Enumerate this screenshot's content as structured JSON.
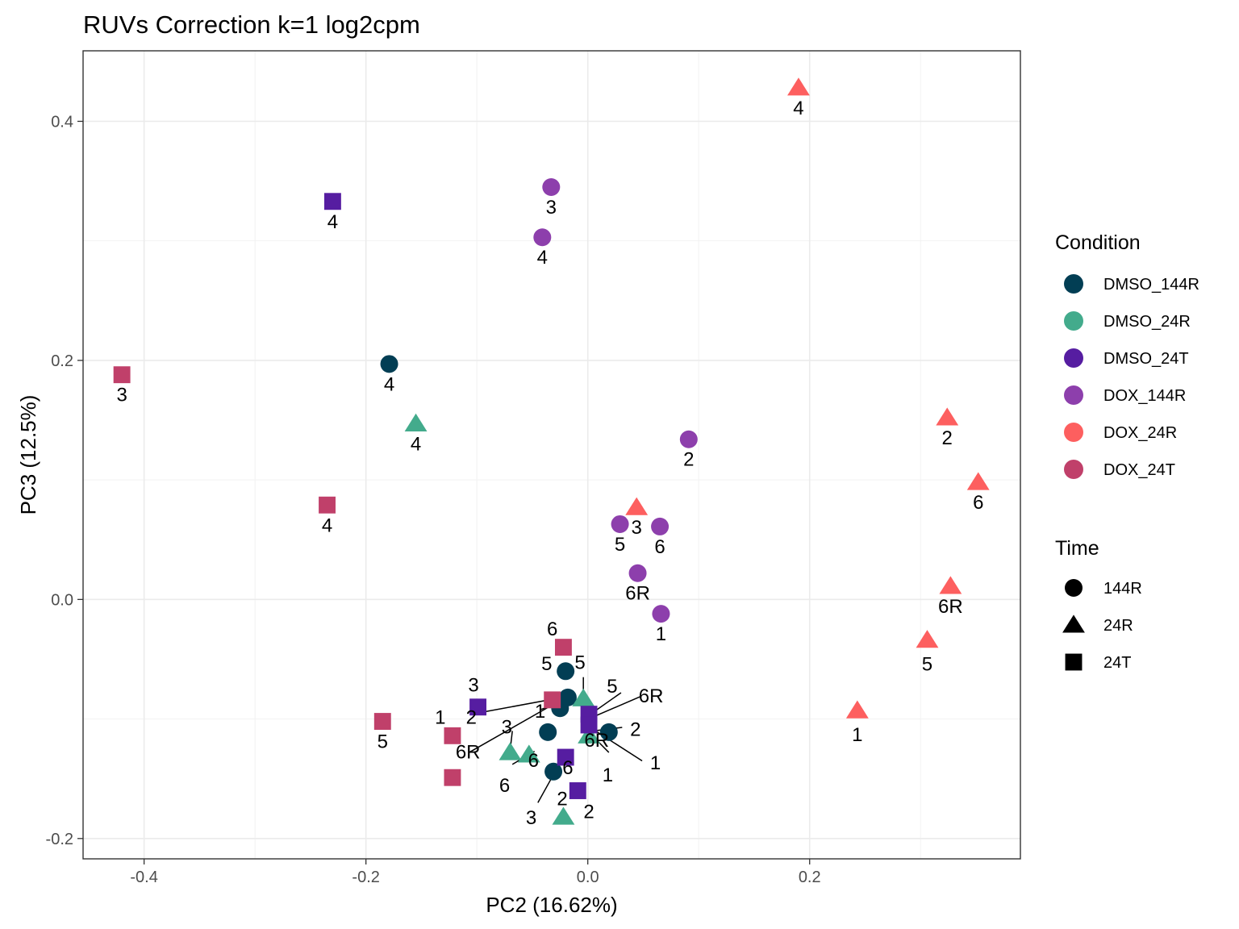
{
  "chart_data": {
    "type": "scatter",
    "title": "RUVs Correction k=1 log2cpm",
    "xlabel": "PC2 (16.62%)",
    "ylabel": "PC3 (12.5%)",
    "xlim": [
      -0.455,
      0.39
    ],
    "ylim": [
      -0.217,
      0.459
    ],
    "x_ticks": [
      -0.4,
      -0.2,
      0.0,
      0.2
    ],
    "x_tick_labels": [
      "-0.4",
      "-0.2",
      "0.0",
      "0.2"
    ],
    "y_ticks": [
      -0.2,
      0.0,
      0.2,
      0.4
    ],
    "y_tick_labels": [
      "-0.2",
      "0.0",
      "0.2",
      "0.4"
    ],
    "grid": true,
    "legend": {
      "placement": "right",
      "condition_title": "Condition",
      "conditions": [
        {
          "name": "DMSO_144R",
          "color": "#023e54"
        },
        {
          "name": "DMSO_24R",
          "color": "#43ab8c"
        },
        {
          "name": "DMSO_24T",
          "color": "#561da1"
        },
        {
          "name": "DOX_144R",
          "color": "#8d3fac"
        },
        {
          "name": "DOX_24R",
          "color": "#fd5f5f"
        },
        {
          "name": "DOX_24T",
          "color": "#c0406a"
        }
      ],
      "time_title": "Time",
      "times": [
        {
          "name": "144R",
          "shape": "circle"
        },
        {
          "name": "24R",
          "shape": "triangle"
        },
        {
          "name": "24T",
          "shape": "square"
        }
      ]
    },
    "points": [
      {
        "condition": "DMSO_144R",
        "time": "144R",
        "label": "4",
        "x": -0.179,
        "y": 0.197
      },
      {
        "condition": "DMSO_144R",
        "time": "144R",
        "label": "5",
        "x": -0.02,
        "y": -0.06
      },
      {
        "condition": "DMSO_144R",
        "time": "144R",
        "label": "1",
        "x": -0.025,
        "y": -0.091
      },
      {
        "condition": "DMSO_144R",
        "time": "144R",
        "label": "6R",
        "x": -0.018,
        "y": -0.082
      },
      {
        "condition": "DMSO_144R",
        "time": "144R",
        "label": "3",
        "x": -0.036,
        "y": -0.111
      },
      {
        "condition": "DMSO_144R",
        "time": "144R",
        "label": "2",
        "x": 0.019,
        "y": -0.111
      },
      {
        "condition": "DMSO_144R",
        "time": "144R",
        "label": "6",
        "x": -0.031,
        "y": -0.144
      },
      {
        "condition": "DMSO_24R",
        "time": "24R",
        "label": "4",
        "x": -0.155,
        "y": 0.147
      },
      {
        "condition": "DMSO_24R",
        "time": "24R",
        "label": "5",
        "x": -0.004,
        "y": -0.083
      },
      {
        "condition": "DMSO_24R",
        "time": "24R",
        "label": "1",
        "x": 0.001,
        "y": -0.114
      },
      {
        "condition": "DMSO_24R",
        "time": "24R",
        "label": "3",
        "x": -0.07,
        "y": -0.128
      },
      {
        "condition": "DMSO_24R",
        "time": "24R",
        "label": "6",
        "x": -0.053,
        "y": -0.13
      },
      {
        "condition": "DMSO_24R",
        "time": "24R",
        "label": "2",
        "x": -0.022,
        "y": -0.182
      },
      {
        "condition": "DMSO_24T",
        "time": "24T",
        "label": "4",
        "x": -0.23,
        "y": 0.333
      },
      {
        "condition": "DMSO_24T",
        "time": "24T",
        "label": "3",
        "x": -0.099,
        "y": -0.09
      },
      {
        "condition": "DMSO_24T",
        "time": "24T",
        "label": "6R",
        "x": 0.001,
        "y": -0.096
      },
      {
        "condition": "DMSO_24T",
        "time": "24T",
        "label": "1",
        "x": 0.001,
        "y": -0.105
      },
      {
        "condition": "DMSO_24T",
        "time": "24T",
        "label": "6",
        "x": -0.02,
        "y": -0.132
      },
      {
        "condition": "DMSO_24T",
        "time": "24T",
        "label": "2",
        "x": -0.009,
        "y": -0.16
      },
      {
        "condition": "DOX_144R",
        "time": "144R",
        "label": "3",
        "x": -0.033,
        "y": 0.345
      },
      {
        "condition": "DOX_144R",
        "time": "144R",
        "label": "4",
        "x": -0.041,
        "y": 0.303
      },
      {
        "condition": "DOX_144R",
        "time": "144R",
        "label": "2",
        "x": 0.091,
        "y": 0.134
      },
      {
        "condition": "DOX_144R",
        "time": "144R",
        "label": "5",
        "x": 0.029,
        "y": 0.063
      },
      {
        "condition": "DOX_144R",
        "time": "144R",
        "label": "6",
        "x": 0.065,
        "y": 0.061
      },
      {
        "condition": "DOX_144R",
        "time": "144R",
        "label": "6R",
        "x": 0.045,
        "y": 0.022
      },
      {
        "condition": "DOX_144R",
        "time": "144R",
        "label": "1",
        "x": 0.066,
        "y": -0.012
      },
      {
        "condition": "DOX_24R",
        "time": "24R",
        "label": "4",
        "x": 0.19,
        "y": 0.428
      },
      {
        "condition": "DOX_24R",
        "time": "24R",
        "label": "2",
        "x": 0.324,
        "y": 0.152
      },
      {
        "condition": "DOX_24R",
        "time": "24R",
        "label": "6",
        "x": 0.352,
        "y": 0.098
      },
      {
        "condition": "DOX_24R",
        "time": "24R",
        "label": "3",
        "x": 0.044,
        "y": 0.077
      },
      {
        "condition": "DOX_24R",
        "time": "24R",
        "label": "6R",
        "x": 0.327,
        "y": 0.011
      },
      {
        "condition": "DOX_24R",
        "time": "24R",
        "label": "5",
        "x": 0.306,
        "y": -0.034
      },
      {
        "condition": "DOX_24R",
        "time": "24R",
        "label": "1",
        "x": 0.243,
        "y": -0.093
      },
      {
        "condition": "DOX_24T",
        "time": "24T",
        "label": "3",
        "x": -0.42,
        "y": 0.188
      },
      {
        "condition": "DOX_24T",
        "time": "24T",
        "label": "4",
        "x": -0.235,
        "y": 0.079
      },
      {
        "condition": "DOX_24T",
        "time": "24T",
        "label": "6",
        "x": -0.022,
        "y": -0.04
      },
      {
        "condition": "DOX_24T",
        "time": "24T",
        "label": "2",
        "x": -0.032,
        "y": -0.084
      },
      {
        "condition": "DOX_24T",
        "time": "24T",
        "label": "5",
        "x": -0.185,
        "y": -0.102
      },
      {
        "condition": "DOX_24T",
        "time": "24T",
        "label": "1",
        "x": -0.122,
        "y": -0.114
      },
      {
        "condition": "DOX_24T",
        "time": "24T",
        "label": "6R",
        "x": -0.122,
        "y": -0.149
      }
    ],
    "annotations": [
      {
        "text": "6",
        "x": -0.032,
        "y": -0.024
      },
      {
        "text": "5",
        "x": -0.037,
        "y": -0.053
      },
      {
        "text": "5",
        "x": -0.007,
        "y": -0.052
      },
      {
        "text": "3",
        "x": -0.103,
        "y": -0.071
      },
      {
        "text": "5",
        "x": 0.022,
        "y": -0.072
      },
      {
        "text": "6R",
        "x": 0.057,
        "y": -0.08
      },
      {
        "text": "1",
        "x": -0.043,
        "y": -0.093
      },
      {
        "text": "1",
        "x": -0.133,
        "y": -0.098
      },
      {
        "text": "2",
        "x": -0.105,
        "y": -0.098
      },
      {
        "text": "3",
        "x": -0.073,
        "y": -0.106
      },
      {
        "text": "2",
        "x": 0.043,
        "y": -0.108
      },
      {
        "text": "6R",
        "x": 0.008,
        "y": -0.117
      },
      {
        "text": "6R",
        "x": -0.108,
        "y": -0.127
      },
      {
        "text": "6",
        "x": -0.049,
        "y": -0.134
      },
      {
        "text": "6",
        "x": -0.018,
        "y": -0.14
      },
      {
        "text": "1",
        "x": 0.061,
        "y": -0.136
      },
      {
        "text": "1",
        "x": 0.018,
        "y": -0.146
      },
      {
        "text": "6",
        "x": -0.075,
        "y": -0.155
      },
      {
        "text": "2",
        "x": -0.023,
        "y": -0.166
      },
      {
        "text": "2",
        "x": 0.001,
        "y": -0.177
      },
      {
        "text": "3",
        "x": -0.051,
        "y": -0.182
      }
    ],
    "leader_lines": [
      {
        "x1": -0.099,
        "y1": -0.095,
        "x2": -0.035,
        "y2": -0.084
      },
      {
        "x1": -0.107,
        "y1": -0.128,
        "x2": -0.024,
        "y2": -0.084
      },
      {
        "x1": -0.07,
        "y1": -0.126,
        "x2": -0.068,
        "y2": -0.11
      },
      {
        "x1": -0.068,
        "y1": -0.138,
        "x2": -0.048,
        "y2": -0.127
      },
      {
        "x1": -0.042,
        "y1": -0.092,
        "x2": -0.025,
        "y2": -0.086
      },
      {
        "x1": -0.004,
        "y1": -0.065,
        "x2": -0.004,
        "y2": -0.082
      },
      {
        "x1": 0.004,
        "y1": -0.095,
        "x2": 0.03,
        "y2": -0.078
      },
      {
        "x1": 0.003,
        "y1": -0.099,
        "x2": 0.048,
        "y2": -0.081
      },
      {
        "x1": 0.005,
        "y1": -0.11,
        "x2": 0.031,
        "y2": -0.107
      },
      {
        "x1": 0.002,
        "y1": -0.107,
        "x2": 0.049,
        "y2": -0.135
      },
      {
        "x1": 0.002,
        "y1": -0.112,
        "x2": 0.019,
        "y2": -0.128
      },
      {
        "x1": -0.033,
        "y1": -0.15,
        "x2": -0.045,
        "y2": -0.17
      }
    ]
  }
}
